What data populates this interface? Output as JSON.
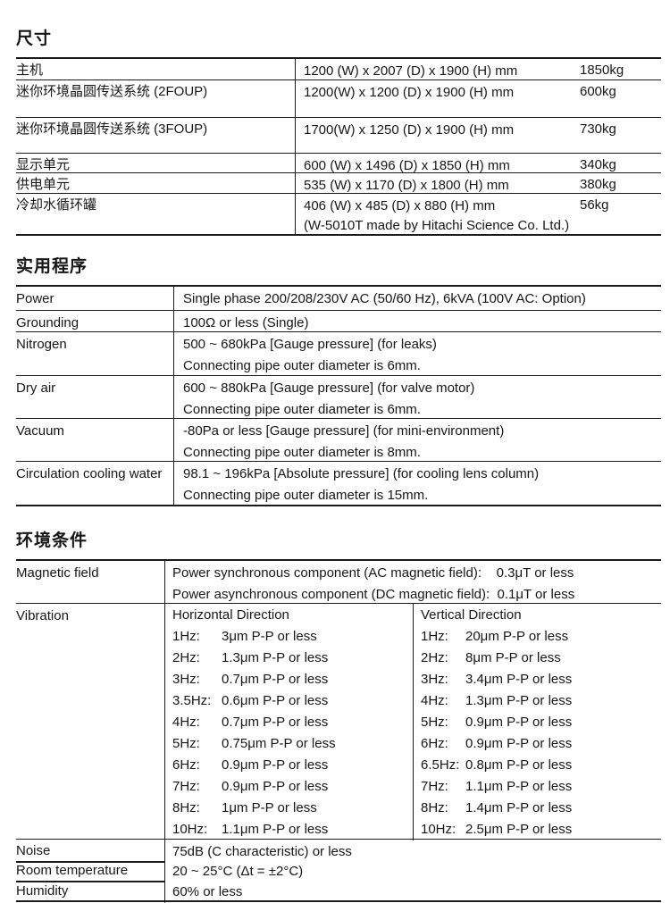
{
  "dimensions": {
    "title": "尺寸",
    "rows": [
      {
        "label": "主机",
        "size": "1200 (W) x 2007 (D) x 1900 (H) mm",
        "weight": "1850kg"
      },
      {
        "label": "迷你环境晶圆传送系统 (2FOUP)",
        "size": "1200(W) x 1200 (D) x 1900 (H) mm",
        "weight": "600kg"
      },
      {
        "label": "迷你环境晶圆传送系统 (3FOUP)",
        "size": "1700(W) x 1250 (D) x 1900 (H) mm",
        "weight": "730kg"
      },
      {
        "label": "显示单元",
        "size": "600 (W) x 1496 (D) x 1850 (H) mm",
        "weight": "340kg"
      },
      {
        "label": "供电单元",
        "size": "535 (W) x 1170 (D) x 1800 (H) mm",
        "weight": "380kg"
      },
      {
        "label": "冷却水循环罐",
        "size": "406 (W) x 485 (D) x 880 (H) mm",
        "weight": "56kg",
        "note": "(W-5010T made by Hitachi Science Co. Ltd.)"
      }
    ]
  },
  "utilities": {
    "title": "实用程序",
    "rows": [
      {
        "label": "Power",
        "lines": [
          "Single phase 200/208/230V AC (50/60 Hz), 6kVA (100V AC: Option)"
        ]
      },
      {
        "label": "Grounding",
        "lines": [
          "100Ω or less (Single)"
        ]
      },
      {
        "label": "Nitrogen",
        "lines": [
          "500 ~ 680kPa [Gauge pressure] (for leaks)",
          "Connecting pipe outer diameter is 6mm."
        ]
      },
      {
        "label": "Dry air",
        "lines": [
          "600 ~ 880kPa [Gauge pressure] (for valve motor)",
          "Connecting pipe outer diameter is 6mm."
        ]
      },
      {
        "label": "Vacuum",
        "lines": [
          "-80Pa or less [Gauge pressure] (for mini-environment)",
          "Connecting pipe outer diameter is 8mm."
        ]
      },
      {
        "label": "Circulation cooling water",
        "lines": [
          "98.1 ~ 196kPa [Absolute pressure] (for cooling lens column)",
          "Connecting pipe outer diameter is 15mm."
        ]
      }
    ]
  },
  "environment": {
    "title": "环境条件",
    "magnetic_field": {
      "label": "Magnetic field",
      "lines": [
        "Power synchronous component (AC magnetic field):    0.3μT or less",
        "Power asynchronous component (DC magnetic field):  0.1μT or less"
      ]
    },
    "vibration": {
      "label": "Vibration",
      "horizontal": {
        "header": "Horizontal Direction",
        "rows": [
          {
            "freq": "1Hz:",
            "value": "3μm P-P or less"
          },
          {
            "freq": "2Hz:",
            "value": "1.3μm P-P or less"
          },
          {
            "freq": "3Hz:",
            "value": "0.7μm P-P or less"
          },
          {
            "freq": "3.5Hz:",
            "value": "0.6μm P-P or less"
          },
          {
            "freq": "4Hz:",
            "value": "0.7μm P-P or less"
          },
          {
            "freq": "5Hz:",
            "value": "0.75μm P-P or less"
          },
          {
            "freq": "6Hz:",
            "value": "0.9μm P-P or less"
          },
          {
            "freq": "7Hz:",
            "value": "0.9μm P-P or less"
          },
          {
            "freq": "8Hz:",
            "value": "1μm P-P or less"
          },
          {
            "freq": "10Hz:",
            "value": "1.1μm P-P or less"
          }
        ]
      },
      "vertical": {
        "header": "Vertical Direction",
        "rows": [
          {
            "freq": "1Hz:",
            "value": "20μm P-P or less"
          },
          {
            "freq": "2Hz:",
            "value": "8μm P-P or less"
          },
          {
            "freq": "3Hz:",
            "value": "3.4μm P-P or less"
          },
          {
            "freq": "4Hz:",
            "value": "1.3μm P-P or less"
          },
          {
            "freq": "5Hz:",
            "value": "0.9μm P-P or less"
          },
          {
            "freq": "6Hz:",
            "value": "0.9μm P-P or less"
          },
          {
            "freq": "6.5Hz:",
            "value": "0.8μm P-P or less"
          },
          {
            "freq": "7Hz:",
            "value": "1.1μm P-P or less"
          },
          {
            "freq": "8Hz:",
            "value": "1.4μm P-P or less"
          },
          {
            "freq": "10Hz:",
            "value": "2.5μm P-P or less"
          }
        ]
      }
    },
    "noise": {
      "label": "Noise",
      "value": "75dB (C characteristic) or less"
    },
    "room_temperature": {
      "label": "Room temperature",
      "value": "20 ~ 25°C (Δt = ±2°C)"
    },
    "humidity": {
      "label": "Humidity",
      "value": "60% or less"
    }
  }
}
